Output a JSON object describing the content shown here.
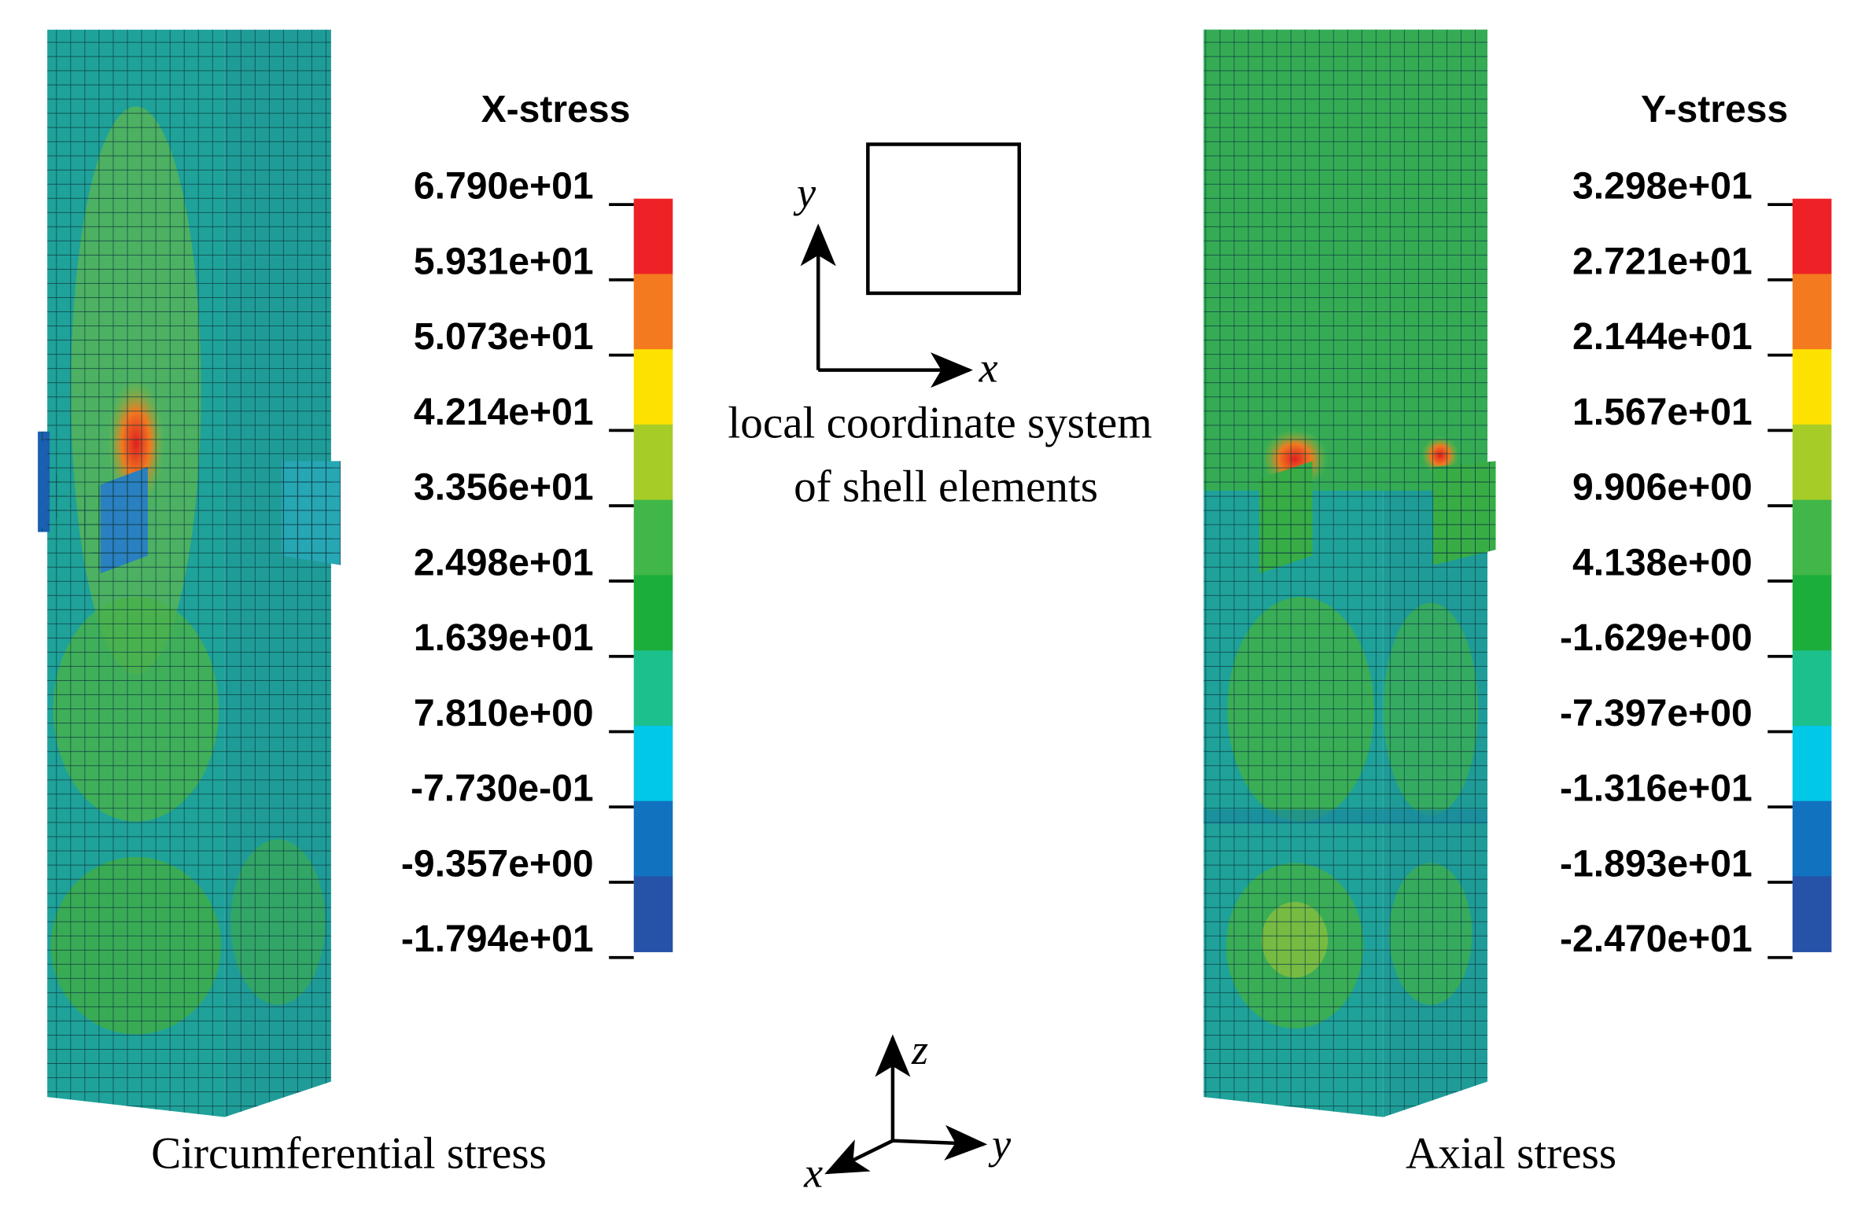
{
  "left": {
    "legend_title": "X-stress",
    "legend_labels": [
      "6.790e+01",
      "5.931e+01",
      "5.073e+01",
      "4.214e+01",
      "3.356e+01",
      "2.498e+01",
      "1.639e+01",
      "7.810e+00",
      "-7.730e-01",
      "-9.357e+00",
      "-1.794e+01"
    ],
    "caption": "Circumferential stress"
  },
  "right": {
    "legend_title": "Y-stress",
    "legend_labels": [
      "3.298e+01",
      "2.721e+01",
      "2.144e+01",
      "1.567e+01",
      "9.906e+00",
      "4.138e+00",
      "-1.629e+00",
      "-7.397e+00",
      "-1.316e+01",
      "-1.893e+01",
      "-2.470e+01"
    ],
    "caption": "Axial stress"
  },
  "legend_colors": [
    "#ee2226",
    "#f47a20",
    "#fde100",
    "#a6cc28",
    "#40b748",
    "#1cae3a",
    "#1cc08c",
    "#00c8e6",
    "#1172c0",
    "#2652a8"
  ],
  "local_axes": {
    "y": "y",
    "x": "x",
    "caption_lines": [
      "local coordinate system",
      "of shell elements"
    ]
  },
  "global_axes": {
    "z": "z",
    "y": "y",
    "x": "x"
  }
}
